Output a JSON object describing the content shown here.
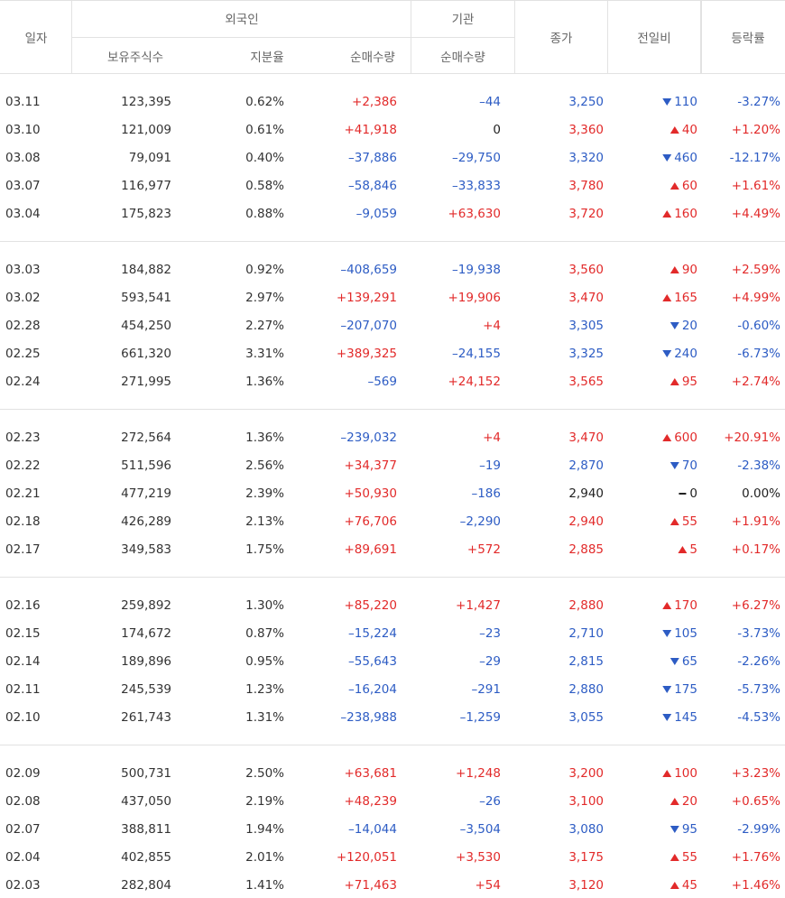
{
  "header": {
    "date": "일자",
    "foreign": "외국인",
    "institution": "기관",
    "holdings": "보유주식수",
    "ratio": "지분율",
    "foreign_net": "순매수량",
    "inst_net": "순매수량",
    "close": "종가",
    "change": "전일비",
    "rate": "등락률"
  },
  "groups": [
    {
      "rows": [
        [
          "03.11",
          "123,395",
          "0.62%",
          "+2,386",
          "–44",
          "3,250",
          "110",
          "-3.27%"
        ],
        [
          "03.10",
          "121,009",
          "0.61%",
          "+41,918",
          "0",
          "3,360",
          "40",
          "+1.20%"
        ],
        [
          "03.08",
          "79,091",
          "0.40%",
          "–37,886",
          "–29,750",
          "3,320",
          "460",
          "-12.17%"
        ],
        [
          "03.07",
          "116,977",
          "0.58%",
          "–58,846",
          "–33,833",
          "3,780",
          "60",
          "+1.61%"
        ],
        [
          "03.04",
          "175,823",
          "0.88%",
          "–9,059",
          "+63,630",
          "3,720",
          "160",
          "+4.49%"
        ]
      ],
      "directions": [
        "down",
        "up",
        "down",
        "up",
        "up"
      ]
    },
    {
      "rows": [
        [
          "03.03",
          "184,882",
          "0.92%",
          "–408,659",
          "–19,938",
          "3,560",
          "90",
          "+2.59%"
        ],
        [
          "03.02",
          "593,541",
          "2.97%",
          "+139,291",
          "+19,906",
          "3,470",
          "165",
          "+4.99%"
        ],
        [
          "02.28",
          "454,250",
          "2.27%",
          "–207,070",
          "+4",
          "3,305",
          "20",
          "-0.60%"
        ],
        [
          "02.25",
          "661,320",
          "3.31%",
          "+389,325",
          "–24,155",
          "3,325",
          "240",
          "-6.73%"
        ],
        [
          "02.24",
          "271,995",
          "1.36%",
          "–569",
          "+24,152",
          "3,565",
          "95",
          "+2.74%"
        ]
      ],
      "directions": [
        "up",
        "up",
        "down",
        "down",
        "up"
      ]
    },
    {
      "rows": [
        [
          "02.23",
          "272,564",
          "1.36%",
          "–239,032",
          "+4",
          "3,470",
          "600",
          "+20.91%"
        ],
        [
          "02.22",
          "511,596",
          "2.56%",
          "+34,377",
          "–19",
          "2,870",
          "70",
          "-2.38%"
        ],
        [
          "02.21",
          "477,219",
          "2.39%",
          "+50,930",
          "–186",
          "2,940",
          "0",
          "0.00%"
        ],
        [
          "02.18",
          "426,289",
          "2.13%",
          "+76,706",
          "–2,290",
          "2,940",
          "55",
          "+1.91%"
        ],
        [
          "02.17",
          "349,583",
          "1.75%",
          "+89,691",
          "+572",
          "2,885",
          "5",
          "+0.17%"
        ]
      ],
      "directions": [
        "up",
        "down",
        "flat",
        "up",
        "up"
      ]
    },
    {
      "rows": [
        [
          "02.16",
          "259,892",
          "1.30%",
          "+85,220",
          "+1,427",
          "2,880",
          "170",
          "+6.27%"
        ],
        [
          "02.15",
          "174,672",
          "0.87%",
          "–15,224",
          "–23",
          "2,710",
          "105",
          "-3.73%"
        ],
        [
          "02.14",
          "189,896",
          "0.95%",
          "–55,643",
          "–29",
          "2,815",
          "65",
          "-2.26%"
        ],
        [
          "02.11",
          "245,539",
          "1.23%",
          "–16,204",
          "–291",
          "2,880",
          "175",
          "-5.73%"
        ],
        [
          "02.10",
          "261,743",
          "1.31%",
          "–238,988",
          "–1,259",
          "3,055",
          "145",
          "-4.53%"
        ]
      ],
      "directions": [
        "up",
        "down",
        "down",
        "down",
        "down"
      ]
    },
    {
      "rows": [
        [
          "02.09",
          "500,731",
          "2.50%",
          "+63,681",
          "+1,248",
          "3,200",
          "100",
          "+3.23%"
        ],
        [
          "02.08",
          "437,050",
          "2.19%",
          "+48,239",
          "–26",
          "3,100",
          "20",
          "+0.65%"
        ],
        [
          "02.07",
          "388,811",
          "1.94%",
          "–14,044",
          "–3,504",
          "3,080",
          "95",
          "-2.99%"
        ],
        [
          "02.04",
          "402,855",
          "2.01%",
          "+120,051",
          "+3,530",
          "3,175",
          "55",
          "+1.76%"
        ],
        [
          "02.03",
          "282,804",
          "1.41%",
          "+71,463",
          "+54",
          "3,120",
          "45",
          "+1.46%"
        ]
      ],
      "directions": [
        "up",
        "up",
        "down",
        "up",
        "up"
      ]
    }
  ]
}
